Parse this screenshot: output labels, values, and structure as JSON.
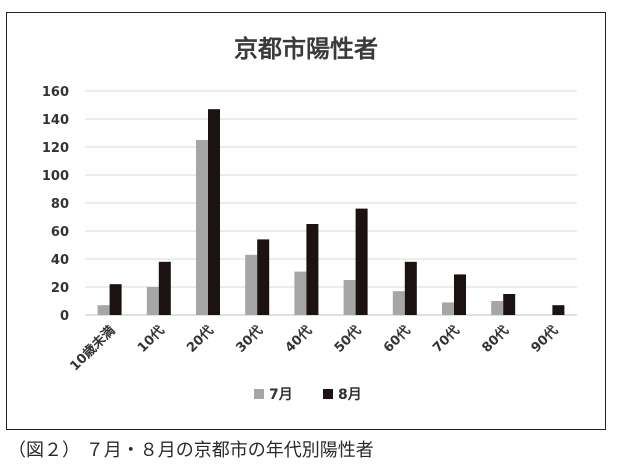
{
  "caption": "（図２） ７月・８月の京都市の年代別陽性者",
  "colors": {
    "series_7": "#a6a6a6",
    "series_8": "#1c1212",
    "grid": "#d9d9d9"
  },
  "chart_data": {
    "type": "bar",
    "title": "京都市陽性者",
    "xlabel": "",
    "ylabel": "",
    "categories": [
      "10歳未満",
      "10代",
      "20代",
      "30代",
      "40代",
      "50代",
      "60代",
      "70代",
      "80代",
      "90代"
    ],
    "series": [
      {
        "name": "7月",
        "values": [
          7,
          20,
          125,
          43,
          31,
          25,
          17,
          9,
          10,
          0
        ]
      },
      {
        "name": "8月",
        "values": [
          22,
          38,
          147,
          54,
          65,
          76,
          38,
          29,
          15,
          7
        ]
      }
    ],
    "ylim": [
      0,
      160
    ],
    "yticks": [
      0,
      20,
      40,
      60,
      80,
      100,
      120,
      140,
      160
    ],
    "grid": true,
    "legend": "bottom"
  }
}
